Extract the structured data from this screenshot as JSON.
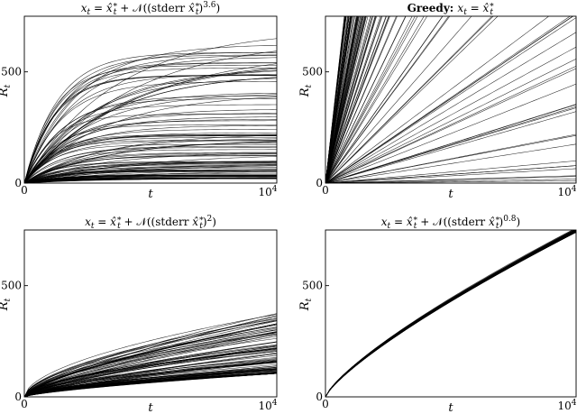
{
  "chart_data": [
    {
      "type": "line",
      "title": "x_t = x̂*_t + 𝒩((stderr x̂*_t)^3.6)",
      "title_parts": {
        "lhs": "x",
        "lhs_sub": "t",
        "eq": " = ",
        "hat": "x̂",
        "hat_sup": "∗",
        "hat_sub": "t",
        "plus": " + 𝒩((stderr ",
        "hat2": "x̂",
        "hat2_sup": "∗",
        "hat2_sub": "t",
        "close": ")",
        "exp": "3.6",
        "end": ")"
      },
      "xlabel": "t",
      "ylabel": "R",
      "ylabel_sub": "t",
      "x_ticks": [
        "0",
        "10"
      ],
      "x_tick_exp": "4",
      "y_ticks": [
        "0",
        "500"
      ],
      "x_range": [
        0,
        10000
      ],
      "y_range": [
        0,
        750
      ],
      "n_series": 120,
      "series_shape": "saturating",
      "series_final_values_max": 660,
      "series_final_values_min": 20
    },
    {
      "type": "line",
      "title": "Greedy: x_t = x̂*_t",
      "title_parts": {
        "prefix": "Greedy: ",
        "lhs": "x",
        "lhs_sub": "t",
        "eq": " = ",
        "hat": "x̂",
        "hat_sup": "∗",
        "hat_sub": "t"
      },
      "xlabel": "t",
      "ylabel": "R",
      "ylabel_sub": "t",
      "x_ticks": [
        "0",
        "10"
      ],
      "x_tick_exp": "4",
      "y_ticks": [
        "0",
        "500"
      ],
      "x_range": [
        0,
        10000
      ],
      "y_range": [
        0,
        750
      ],
      "n_series": 120,
      "series_shape": "linear",
      "series_final_values_max": 10000,
      "series_final_values_min": 10
    },
    {
      "type": "line",
      "title": "x_t = x̂*_t + 𝒩((stderr x̂*_t)^2)",
      "title_parts": {
        "lhs": "x",
        "lhs_sub": "t",
        "eq": " = ",
        "hat": "x̂",
        "hat_sup": "∗",
        "hat_sub": "t",
        "plus": " + 𝒩((stderr ",
        "hat2": "x̂",
        "hat2_sup": "∗",
        "hat2_sub": "t",
        "close": ")",
        "exp": "2",
        "end": ")"
      },
      "xlabel": "t",
      "ylabel": "R",
      "ylabel_sub": "t",
      "x_ticks": [
        "0",
        "10"
      ],
      "x_tick_exp": "4",
      "y_ticks": [
        "0",
        "500"
      ],
      "x_range": [
        0,
        10000
      ],
      "y_range": [
        0,
        750
      ],
      "n_series": 120,
      "series_shape": "sqrt",
      "series_final_values_max": 385,
      "series_final_values_min": 105
    },
    {
      "type": "line",
      "title": "x_t = x̂*_t + 𝒩((stderr x̂*_t)^0.8)",
      "title_parts": {
        "lhs": "x",
        "lhs_sub": "t",
        "eq": " = ",
        "hat": "x̂",
        "hat_sup": "∗",
        "hat_sub": "t",
        "plus": " + 𝒩((stderr ",
        "hat2": "x̂",
        "hat2_sup": "∗",
        "hat2_sub": "t",
        "close": ")",
        "exp": "0.8",
        "end": ")"
      },
      "xlabel": "t",
      "ylabel": "R",
      "ylabel_sub": "t",
      "x_ticks": [
        "0",
        "10"
      ],
      "x_tick_exp": "4",
      "y_ticks": [
        "0",
        "500"
      ],
      "x_range": [
        0,
        10000
      ],
      "y_range": [
        0,
        750
      ],
      "n_series": 60,
      "series_shape": "power",
      "series_final_values_max": 760,
      "series_final_values_min": 740
    }
  ]
}
